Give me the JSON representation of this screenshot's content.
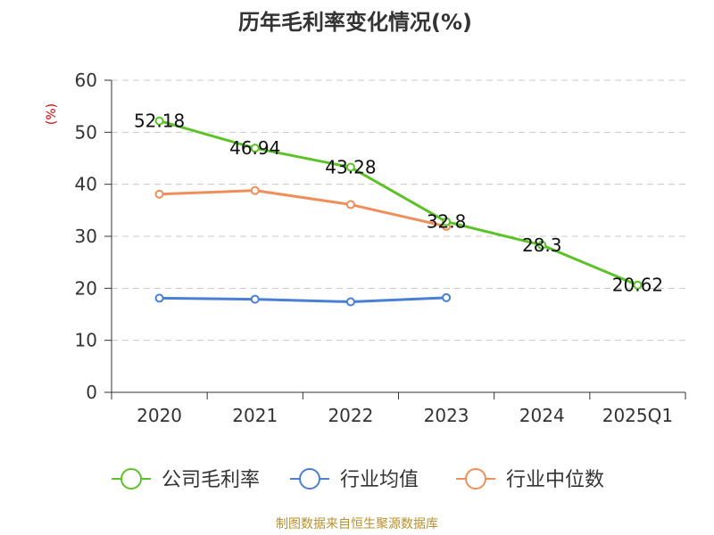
{
  "chart_data": {
    "type": "line",
    "title": "历年毛利率变化情况(%)",
    "ylabel": "(%)",
    "xlabel": "",
    "categories": [
      "2020",
      "2021",
      "2022",
      "2023",
      "2024",
      "2025Q1"
    ],
    "ylim": [
      0,
      60
    ],
    "yticks": [
      0,
      10,
      20,
      30,
      40,
      50,
      60
    ],
    "grid": true,
    "legend_position": "bottom",
    "series": [
      {
        "name": "公司毛利率",
        "color": "#5cc227",
        "values": [
          52.18,
          46.94,
          43.28,
          32.8,
          28.3,
          20.62
        ],
        "show_labels": true
      },
      {
        "name": "行业均值",
        "color": "#4a7fd6",
        "values": [
          18.1,
          17.9,
          17.4,
          18.2,
          null,
          null
        ],
        "show_labels": false
      },
      {
        "name": "行业中位数",
        "color": "#f08e5a",
        "values": [
          38.1,
          38.8,
          36.1,
          31.9,
          null,
          null
        ],
        "show_labels": false
      }
    ],
    "data_labels": [
      "52.18",
      "46.94",
      "43.28",
      "32.8",
      "28.3",
      "20.62"
    ]
  },
  "source": "制图数据来自恒生聚源数据库"
}
